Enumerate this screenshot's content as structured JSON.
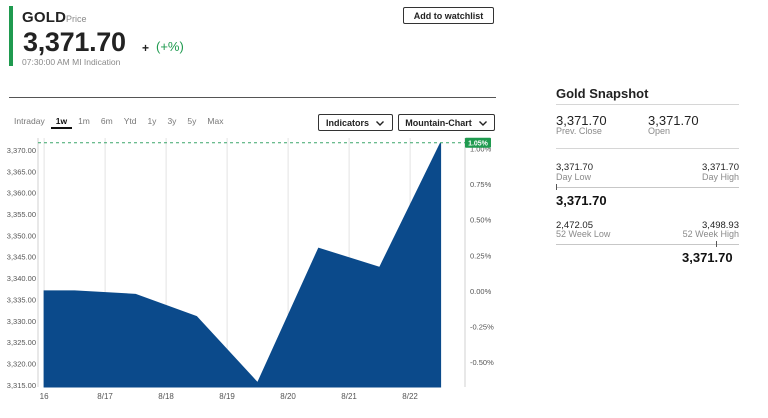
{
  "quote": {
    "symbol": "GOLD",
    "symbol_type": "Price",
    "price": "3,371.70",
    "change_plus": "+",
    "change_pct": "(+%)",
    "timestamp": "07:30:00 AM",
    "timestamp_note": "MI Indication",
    "accent": "#1f9a4f"
  },
  "watchlist_label": "Add to watchlist",
  "ranges": [
    "Intraday",
    "1w",
    "1m",
    "6m",
    "Ytd",
    "1y",
    "3y",
    "5y",
    "Max"
  ],
  "active_range": "1w",
  "indicators_label": "Indicators",
  "chart_style_label": "Mountain-Chart",
  "chart_data": {
    "type": "area",
    "color": "#0b4a8b",
    "x_tick_labels": [
      {
        "label": "16",
        "x": 0
      },
      {
        "label": "8/17",
        "x": 1
      },
      {
        "label": "8/18",
        "x": 2
      },
      {
        "label": "8/19",
        "x": 3
      },
      {
        "label": "8/20",
        "x": 4
      },
      {
        "label": "8/21",
        "x": 5
      },
      {
        "label": "8/22",
        "x": 6
      }
    ],
    "points": [
      {
        "x": 0.0,
        "y": 3337.0
      },
      {
        "x": 0.5,
        "y": 3337.0
      },
      {
        "x": 1.5,
        "y": 3336.2
      },
      {
        "x": 2.5,
        "y": 3331.0
      },
      {
        "x": 3.5,
        "y": 3315.5
      },
      {
        "x": 4.5,
        "y": 3347.0
      },
      {
        "x": 5.5,
        "y": 3342.5
      },
      {
        "x": 6.5,
        "y": 3371.7
      }
    ],
    "xlim": [
      -0.1,
      6.9
    ],
    "ylim": [
      3314.5,
      3372.8
    ],
    "y_ticks": [
      "3,315.00",
      "3,320.00",
      "3,325.00",
      "3,330.00",
      "3,335.00",
      "3,340.00",
      "3,345.00",
      "3,350.00",
      "3,355.00",
      "3,360.00",
      "3,365.00",
      "3,370.00"
    ],
    "y_tick_values": [
      3315,
      3320,
      3325,
      3330,
      3335,
      3340,
      3345,
      3350,
      3355,
      3360,
      3365,
      3370
    ],
    "pct_ticks": [
      {
        "label": "1.00%",
        "value": 1.0
      },
      {
        "label": "0.75%",
        "value": 0.75
      },
      {
        "label": "0.50%",
        "value": 0.5
      },
      {
        "label": "0.25%",
        "value": 0.25
      },
      {
        "label": "0.00%",
        "value": 0.0
      },
      {
        "label": "-0.25%",
        "value": -0.25
      },
      {
        "label": "-0.50%",
        "value": -0.5
      }
    ],
    "pct_base": 3337.0,
    "last_pct_label": "1.05%",
    "last_value": 3371.7
  },
  "snapshot": {
    "title": "Gold Snapshot",
    "prev_close_value": "3,371.70",
    "prev_close_label": "Prev. Close",
    "open_value": "3,371.70",
    "open_label": "Open",
    "day_low_value": "3,371.70",
    "day_low_label": "Day Low",
    "day_high_value": "3,371.70",
    "day_high_label": "Day High",
    "day_current": "3,371.70",
    "week_low_value": "2,472.05",
    "week_low_label": "52 Week Low",
    "week_high_value": "3,498.93",
    "week_high_label": "52 Week High",
    "week_current": "3,371.70"
  }
}
